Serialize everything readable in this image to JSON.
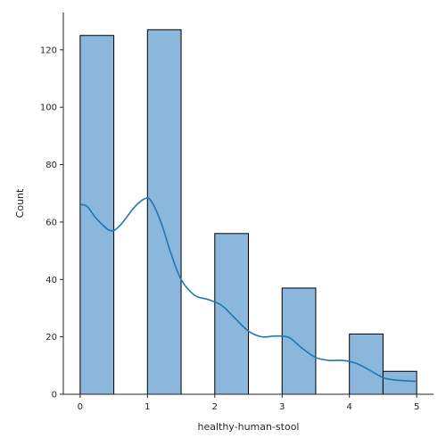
{
  "chart_data": {
    "type": "bar",
    "subtype": "histogram-with-kde",
    "title": "",
    "xlabel": "healthy-human-stool",
    "ylabel": "Count",
    "xlim": [
      -0.25,
      5.25
    ],
    "ylim": [
      0,
      133
    ],
    "xticks": [
      0,
      1,
      2,
      3,
      4,
      5
    ],
    "yticks": [
      0,
      20,
      40,
      60,
      80,
      100,
      120
    ],
    "bins": [
      {
        "x0": 0.0,
        "x1": 0.5,
        "count": 125
      },
      {
        "x0": 1.0,
        "x1": 1.5,
        "count": 127
      },
      {
        "x0": 2.0,
        "x1": 2.5,
        "count": 56
      },
      {
        "x0": 3.0,
        "x1": 3.5,
        "count": 37
      },
      {
        "x0": 4.0,
        "x1": 4.5,
        "count": 21
      },
      {
        "x0": 4.5,
        "x1": 5.0,
        "count": 8
      }
    ],
    "kde": {
      "x": [
        0,
        0.1,
        0.25,
        0.45,
        0.6,
        0.8,
        0.95,
        1.05,
        1.2,
        1.35,
        1.5,
        1.7,
        1.9,
        2.1,
        2.3,
        2.5,
        2.7,
        2.9,
        3.1,
        3.3,
        3.5,
        3.7,
        3.9,
        4.1,
        4.3,
        4.5,
        4.7,
        5.0
      ],
      "y": [
        66,
        65.5,
        61,
        57,
        59,
        65,
        68,
        67.5,
        60,
        49,
        40,
        34.5,
        33,
        31,
        26.5,
        22,
        20,
        20.3,
        19.8,
        16,
        12.8,
        11.8,
        11.8,
        10.8,
        8.4,
        5.8,
        4.9,
        4.5
      ]
    },
    "grid": false,
    "legend": "none",
    "colors": {
      "bar_fill": "#8ab7db",
      "bar_edge": "#000000",
      "kde_line": "#1f77b4",
      "text": "#262626"
    }
  }
}
